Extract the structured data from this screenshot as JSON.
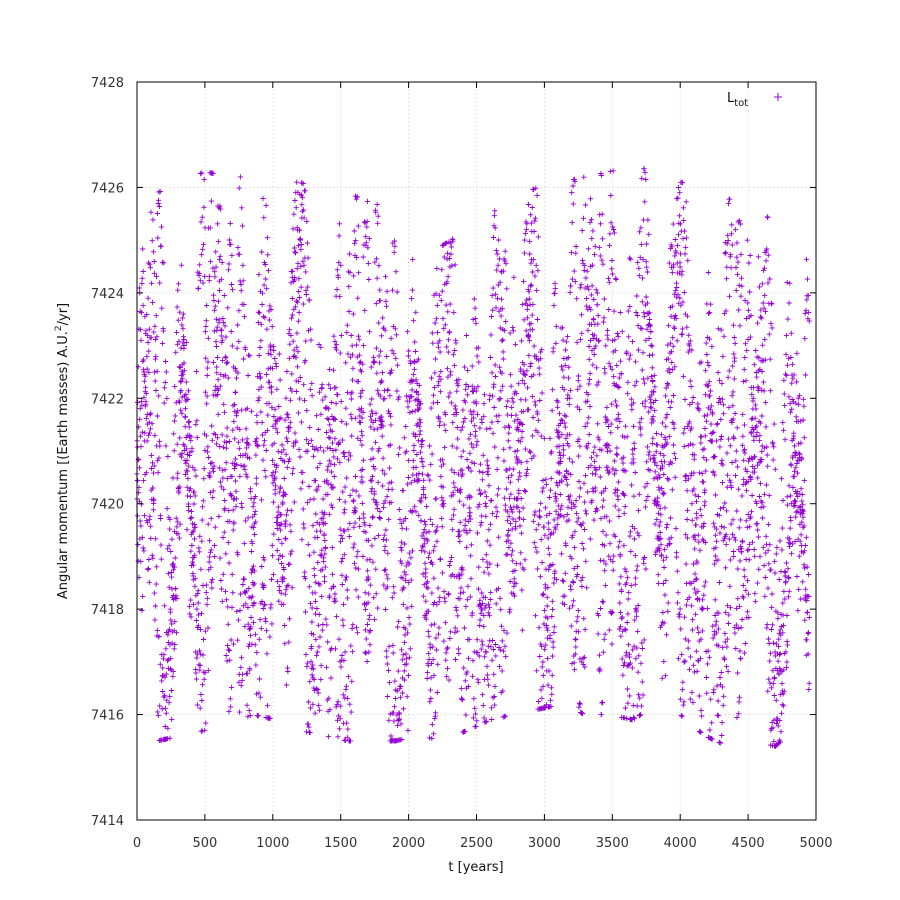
{
  "chart_data": {
    "type": "scatter",
    "title": "",
    "xlabel": "t [years]",
    "ylabel": {
      "pre": "Angular momentum [(Earth masses) A.U.",
      "sup": "2",
      "post": "/yr]"
    },
    "xlim": [
      0,
      5000
    ],
    "ylim": [
      7414,
      7428
    ],
    "xticks": [
      "0",
      "500",
      "1000",
      "1500",
      "2000",
      "2500",
      "3000",
      "3500",
      "4000",
      "4500",
      "5000"
    ],
    "yticks": [
      "7414",
      "7416",
      "7418",
      "7420",
      "7422",
      "7424",
      "7426",
      "7428"
    ],
    "grid": true,
    "legend_position": "top-right",
    "marker": "plus",
    "series": [
      {
        "name": {
          "base": "L",
          "sub": "tot"
        },
        "color": "#9400d3",
        "x_range": [
          0,
          4950
        ],
        "y_range": [
          7415.4,
          7426.6
        ],
        "sampled_peaks": [
          [
            0,
            7425.7
          ],
          [
            150,
            7426.1
          ],
          [
            330,
            7426.3
          ],
          [
            500,
            7426.5
          ],
          [
            680,
            7426.4
          ],
          [
            850,
            7426.4
          ],
          [
            1030,
            7426.3
          ],
          [
            1200,
            7426.3
          ],
          [
            1380,
            7426.1
          ],
          [
            1550,
            7426.1
          ],
          [
            1730,
            7425.9
          ],
          [
            1900,
            7425.8
          ],
          [
            2080,
            7425.3
          ],
          [
            2250,
            7425.1
          ],
          [
            2430,
            7425.4
          ],
          [
            2600,
            7425.7
          ],
          [
            2780,
            7426.0
          ],
          [
            2950,
            7426.2
          ],
          [
            3130,
            7426.3
          ],
          [
            3300,
            7426.4
          ],
          [
            3480,
            7426.5
          ],
          [
            3650,
            7426.6
          ],
          [
            3830,
            7426.5
          ],
          [
            4000,
            7426.3
          ],
          [
            4180,
            7426.2
          ],
          [
            4350,
            7426.0
          ],
          [
            4530,
            7425.9
          ],
          [
            4700,
            7425.5
          ],
          [
            4880,
            7425.0
          ]
        ],
        "sampled_troughs": [
          [
            0,
            7415.4
          ],
          [
            150,
            7415.5
          ],
          [
            330,
            7415.6
          ],
          [
            500,
            7415.7
          ],
          [
            680,
            7415.8
          ],
          [
            850,
            7416.0
          ],
          [
            1030,
            7415.9
          ],
          [
            1200,
            7415.7
          ],
          [
            1380,
            7415.6
          ],
          [
            1550,
            7415.5
          ],
          [
            1730,
            7415.5
          ],
          [
            1900,
            7415.5
          ],
          [
            2080,
            7415.6
          ],
          [
            2250,
            7415.5
          ],
          [
            2430,
            7415.7
          ],
          [
            2600,
            7415.9
          ],
          [
            2780,
            7416.0
          ],
          [
            2950,
            7416.1
          ],
          [
            3130,
            7416.2
          ],
          [
            3300,
            7416.0
          ],
          [
            3480,
            7416.0
          ],
          [
            3650,
            7415.9
          ],
          [
            3830,
            7416.2
          ],
          [
            4000,
            7416.0
          ],
          [
            4180,
            7415.6
          ],
          [
            4350,
            7415.4
          ],
          [
            4530,
            7415.5
          ],
          [
            4700,
            7415.4
          ],
          [
            4880,
            7415.8
          ]
        ]
      }
    ]
  }
}
